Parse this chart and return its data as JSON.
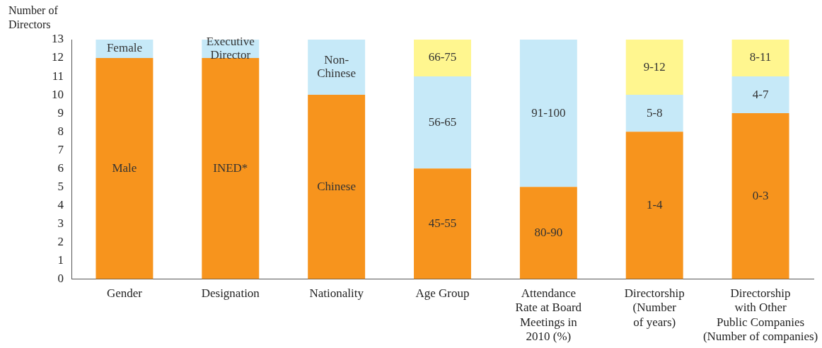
{
  "chart_data": {
    "type": "bar",
    "stacked": true,
    "ylabel": "Number of\nDirectors",
    "categories": [
      "Gender",
      "Designation",
      "Nationality",
      "Age Group",
      "Attendance\nRate at Board\nMeetings in\n2010 (%)",
      "Directorship\n(Number\nof years)",
      "Directorship\nwith Other\nPublic Companies\n(Number of companies)"
    ],
    "series": [
      {
        "color": "#f7941d",
        "values": [
          12,
          12,
          10,
          6,
          5,
          8,
          9
        ],
        "value_labels": [
          "Male",
          "INED*",
          "Chinese",
          "45-55",
          "80-90",
          "1-4",
          "0-3"
        ]
      },
      {
        "color": "#c6e9f8",
        "values": [
          1,
          1,
          3,
          5,
          8,
          2,
          2
        ],
        "value_labels": [
          "Female",
          "Executive\nDirector",
          "Non-\nChinese",
          "56-65",
          "91-100",
          "5-8",
          "4-7"
        ]
      },
      {
        "color": "#fff68f",
        "values": [
          null,
          null,
          null,
          2,
          null,
          3,
          2
        ],
        "value_labels": [
          null,
          null,
          null,
          "66-75",
          null,
          "9-12",
          "8-11"
        ]
      }
    ],
    "ylim": [
      0,
      13
    ],
    "yticks": [
      0,
      1,
      2,
      3,
      4,
      5,
      6,
      7,
      8,
      9,
      10,
      11,
      12,
      13
    ],
    "grid": false,
    "legend": false
  }
}
